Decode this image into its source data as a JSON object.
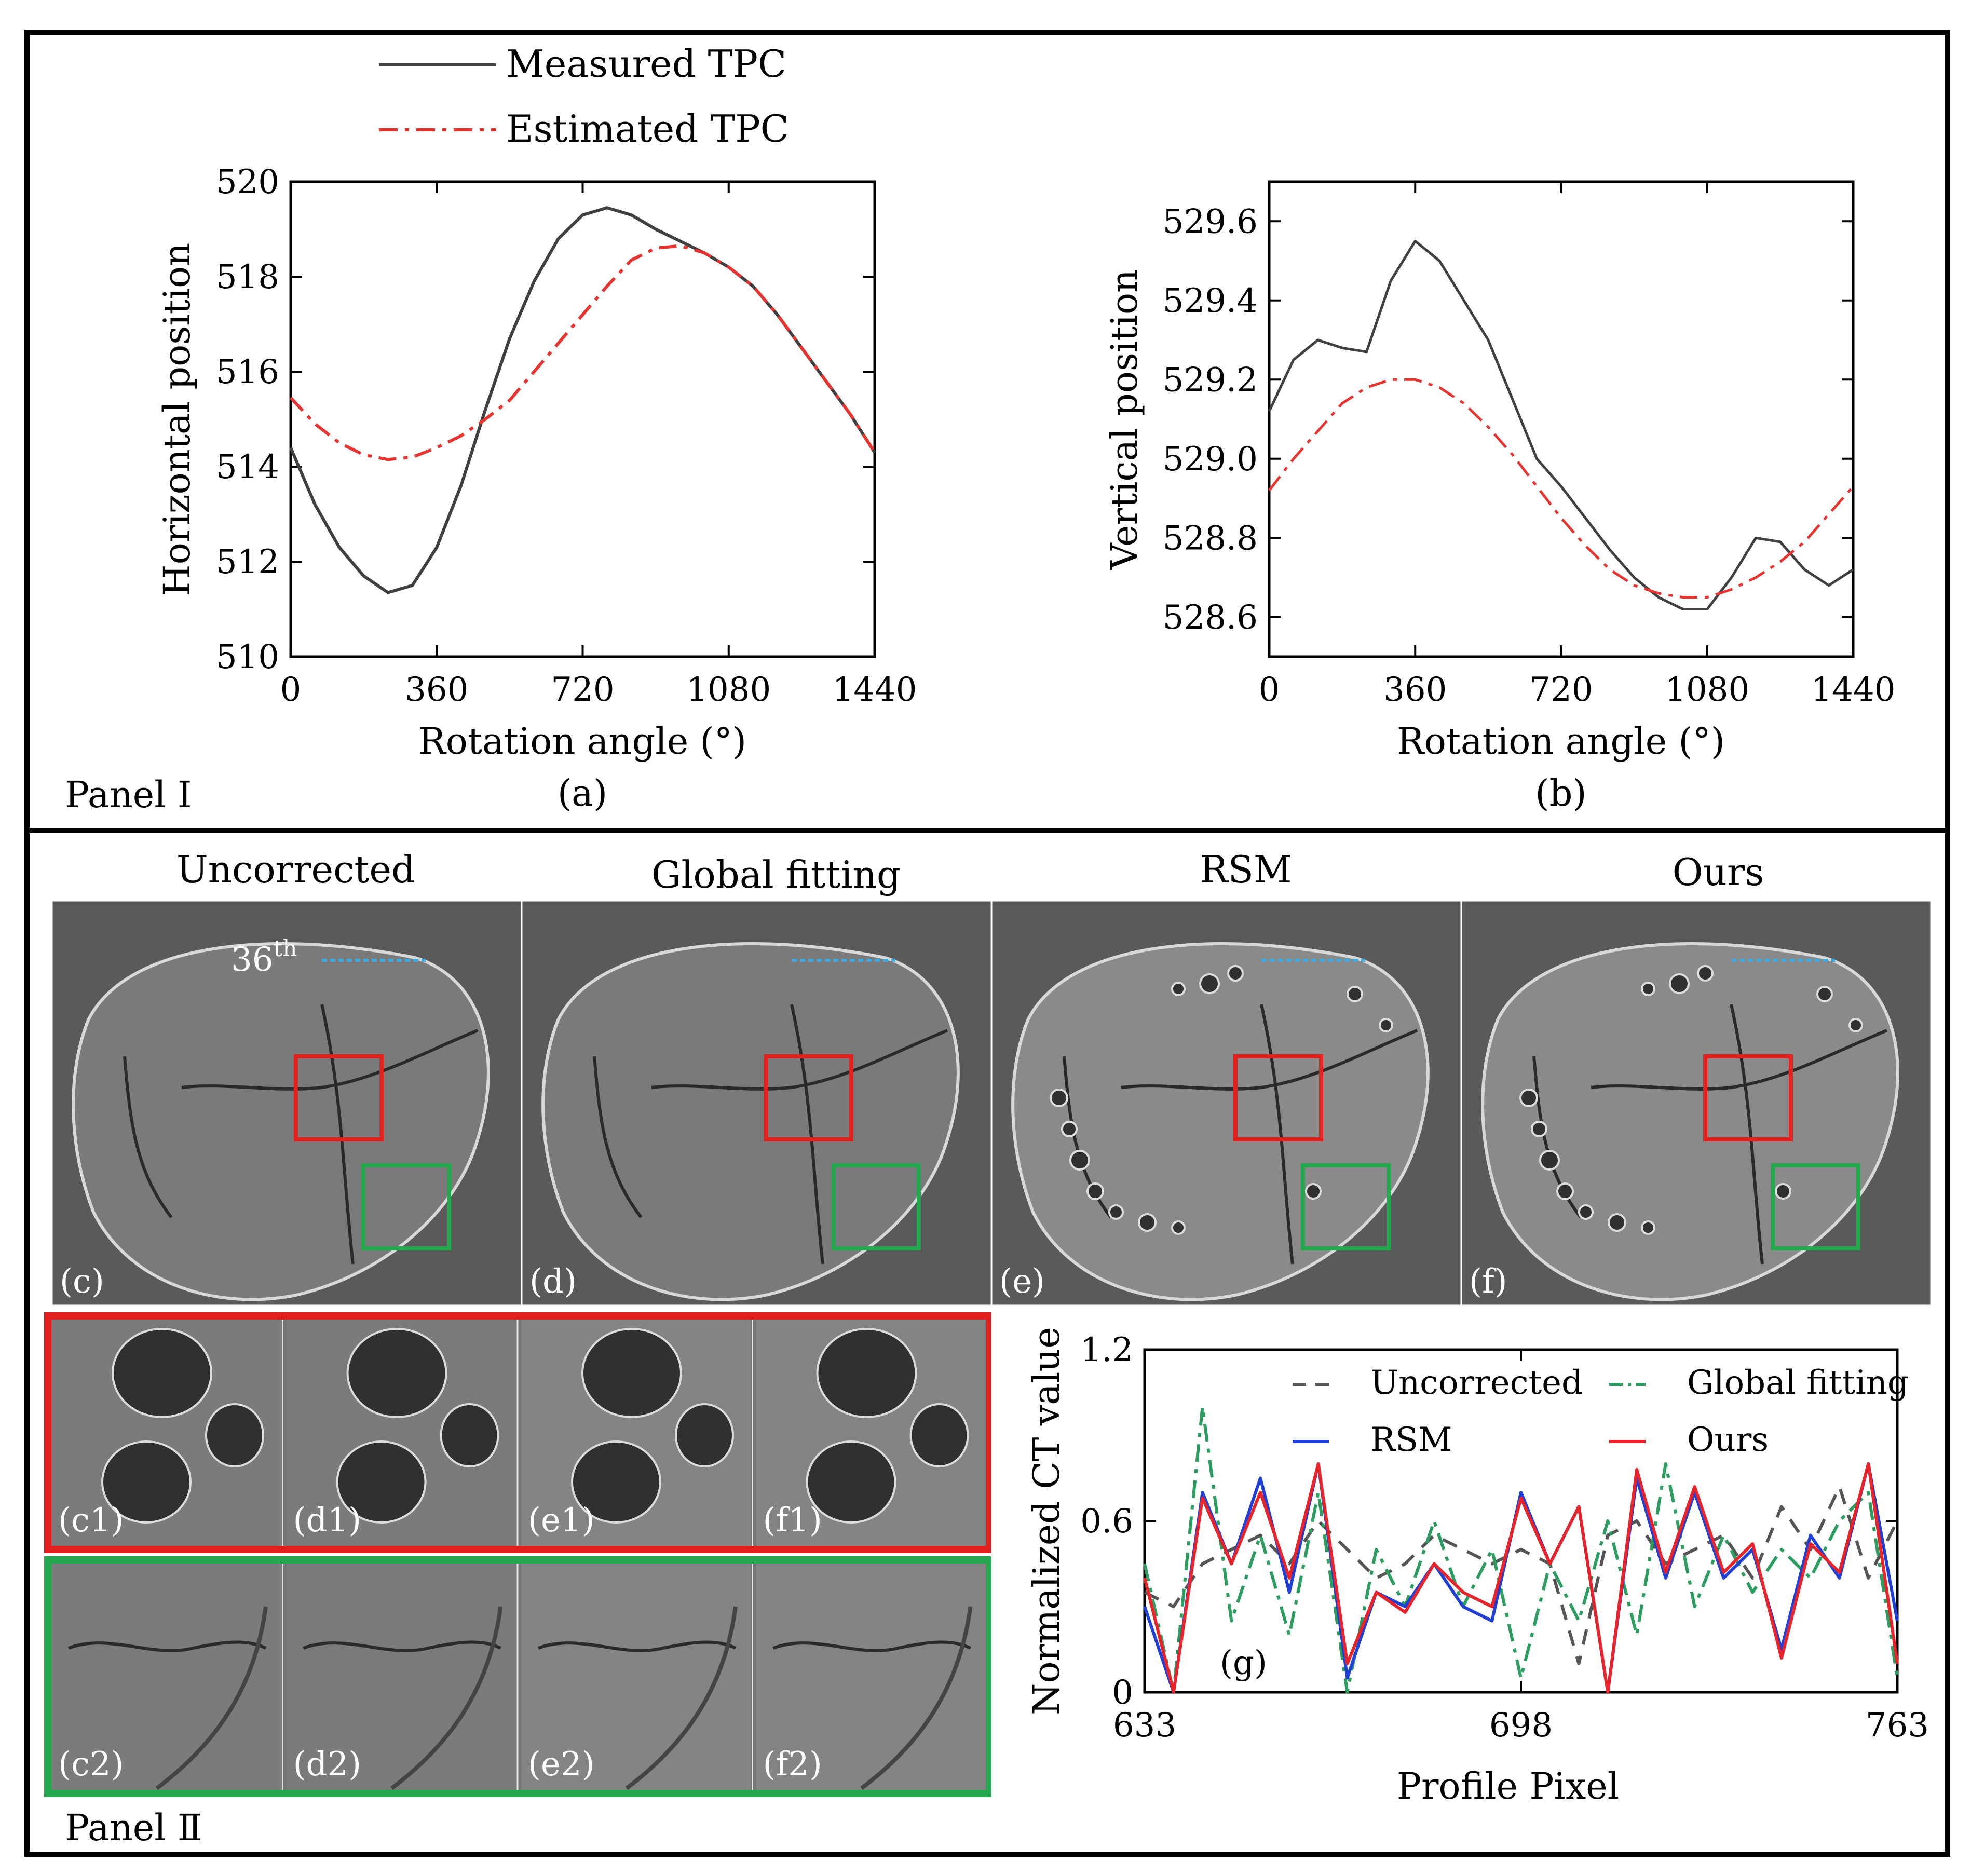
{
  "panel1": {
    "label": "Panel Ⅰ",
    "legend": [
      {
        "label": "Measured TPC",
        "color": "#404040",
        "style": "solid"
      },
      {
        "label": "Estimated TPC",
        "color": "#e8332e",
        "style": "dashdot"
      }
    ]
  },
  "panel2": {
    "label": "Panel Ⅱ",
    "methods": [
      "Uncorrected",
      "Global fitting",
      "RSM",
      "Ours"
    ],
    "image_labels": [
      "(c)",
      "(d)",
      "(e)",
      "(f)"
    ],
    "annotation": "36",
    "annotation_sup": "th",
    "red_row_labels": [
      "(c1)",
      "(d1)",
      "(e1)",
      "(f1)"
    ],
    "green_row_labels": [
      "(c2)",
      "(d2)",
      "(e2)",
      "(f2)"
    ],
    "colors": {
      "red_box": "#e3211f",
      "green_box": "#23a84d",
      "profile_line": "#3fa9e0"
    }
  },
  "chart_data": [
    {
      "id": "a",
      "type": "line",
      "caption": "(a)",
      "xlabel": "Rotation angle (°)",
      "ylabel": "Horizontal position",
      "xlim": [
        0,
        1440
      ],
      "ylim": [
        510,
        520
      ],
      "xticks": [
        "0",
        "360",
        "720",
        "1080",
        "1440"
      ],
      "yticks": [
        "510",
        "512",
        "514",
        "516",
        "518",
        "520"
      ],
      "x": [
        0,
        60,
        120,
        180,
        240,
        300,
        360,
        420,
        480,
        540,
        600,
        660,
        720,
        780,
        840,
        900,
        960,
        1020,
        1080,
        1140,
        1200,
        1260,
        1320,
        1380,
        1440
      ],
      "series": [
        {
          "name": "Measured TPC",
          "values": [
            514.4,
            513.2,
            512.3,
            511.7,
            511.35,
            511.5,
            512.3,
            513.6,
            515.2,
            516.7,
            517.9,
            518.8,
            519.3,
            519.45,
            519.3,
            519.0,
            518.75,
            518.5,
            518.2,
            517.8,
            517.2,
            516.5,
            515.8,
            515.1,
            514.3
          ]
        },
        {
          "name": "Estimated TPC",
          "values": [
            515.45,
            514.9,
            514.5,
            514.25,
            514.15,
            514.2,
            514.4,
            514.65,
            515.0,
            515.4,
            516.0,
            516.6,
            517.2,
            517.8,
            518.35,
            518.6,
            518.65,
            518.5,
            518.2,
            517.8,
            517.2,
            516.5,
            515.8,
            515.1,
            514.3
          ]
        }
      ]
    },
    {
      "id": "b",
      "type": "line",
      "caption": "(b)",
      "xlabel": "Rotation angle (°)",
      "ylabel": "Vertical position",
      "xlim": [
        0,
        1440
      ],
      "ylim": [
        528.5,
        529.7
      ],
      "xticks": [
        "0",
        "360",
        "720",
        "1080",
        "1440"
      ],
      "yticks": [
        "528.6",
        "528.8",
        "529.0",
        "529.2",
        "529.4",
        "529.6"
      ],
      "x": [
        0,
        60,
        120,
        180,
        240,
        300,
        360,
        420,
        480,
        540,
        600,
        660,
        720,
        780,
        840,
        900,
        960,
        1020,
        1080,
        1140,
        1200,
        1260,
        1320,
        1380,
        1440
      ],
      "series": [
        {
          "name": "Measured TPC",
          "values": [
            529.12,
            529.25,
            529.3,
            529.28,
            529.27,
            529.45,
            529.55,
            529.5,
            529.4,
            529.3,
            529.15,
            529.0,
            528.93,
            528.85,
            528.77,
            528.7,
            528.65,
            528.62,
            528.62,
            528.7,
            528.8,
            528.79,
            528.72,
            528.68,
            528.72
          ]
        },
        {
          "name": "Estimated TPC",
          "values": [
            528.92,
            529.0,
            529.07,
            529.14,
            529.18,
            529.2,
            529.2,
            529.18,
            529.14,
            529.08,
            529.01,
            528.93,
            528.85,
            528.78,
            528.72,
            528.68,
            528.66,
            528.65,
            528.65,
            528.67,
            528.7,
            528.74,
            528.79,
            528.86,
            528.93
          ]
        }
      ]
    },
    {
      "id": "g",
      "type": "line",
      "caption": "(g)",
      "xlabel": "Profile Pixel",
      "ylabel": "Normalized CT value",
      "xlim": [
        633,
        763
      ],
      "ylim": [
        0,
        1.2
      ],
      "xticks": [
        "633",
        "698",
        "763"
      ],
      "yticks": [
        "0",
        "0.6",
        "1.2"
      ],
      "x": [
        633,
        638,
        643,
        648,
        653,
        658,
        663,
        668,
        673,
        678,
        683,
        688,
        693,
        698,
        703,
        708,
        713,
        718,
        723,
        728,
        733,
        738,
        743,
        748,
        753,
        758,
        763
      ],
      "series": [
        {
          "name": "Uncorrected",
          "color": "#555555",
          "style": "dashed",
          "values": [
            0.35,
            0.3,
            0.45,
            0.5,
            0.55,
            0.45,
            0.6,
            0.5,
            0.4,
            0.45,
            0.55,
            0.5,
            0.45,
            0.5,
            0.45,
            0.1,
            0.55,
            0.6,
            0.45,
            0.5,
            0.55,
            0.4,
            0.65,
            0.5,
            0.72,
            0.4,
            0.6
          ]
        },
        {
          "name": "Global fitting",
          "color": "#2a9d5f",
          "style": "dashdot",
          "values": [
            0.45,
            0.0,
            1.0,
            0.25,
            0.55,
            0.2,
            0.7,
            0.0,
            0.5,
            0.3,
            0.6,
            0.3,
            0.5,
            0.05,
            0.45,
            0.25,
            0.6,
            0.2,
            0.8,
            0.3,
            0.55,
            0.35,
            0.5,
            0.4,
            0.6,
            0.7,
            0.05
          ]
        },
        {
          "name": "RSM",
          "color": "#1f3fd6",
          "style": "solid",
          "values": [
            0.3,
            0.0,
            0.7,
            0.45,
            0.75,
            0.35,
            0.8,
            0.05,
            0.35,
            0.3,
            0.45,
            0.3,
            0.25,
            0.7,
            0.45,
            0.65,
            0.0,
            0.75,
            0.4,
            0.7,
            0.4,
            0.5,
            0.15,
            0.55,
            0.4,
            0.8,
            0.25
          ]
        },
        {
          "name": "Ours",
          "color": "#e8232a",
          "style": "solid",
          "values": [
            0.4,
            0.0,
            0.68,
            0.45,
            0.7,
            0.4,
            0.8,
            0.1,
            0.35,
            0.28,
            0.45,
            0.35,
            0.3,
            0.68,
            0.45,
            0.65,
            0.0,
            0.78,
            0.42,
            0.72,
            0.42,
            0.52,
            0.12,
            0.52,
            0.42,
            0.8,
            0.1
          ]
        }
      ]
    }
  ]
}
